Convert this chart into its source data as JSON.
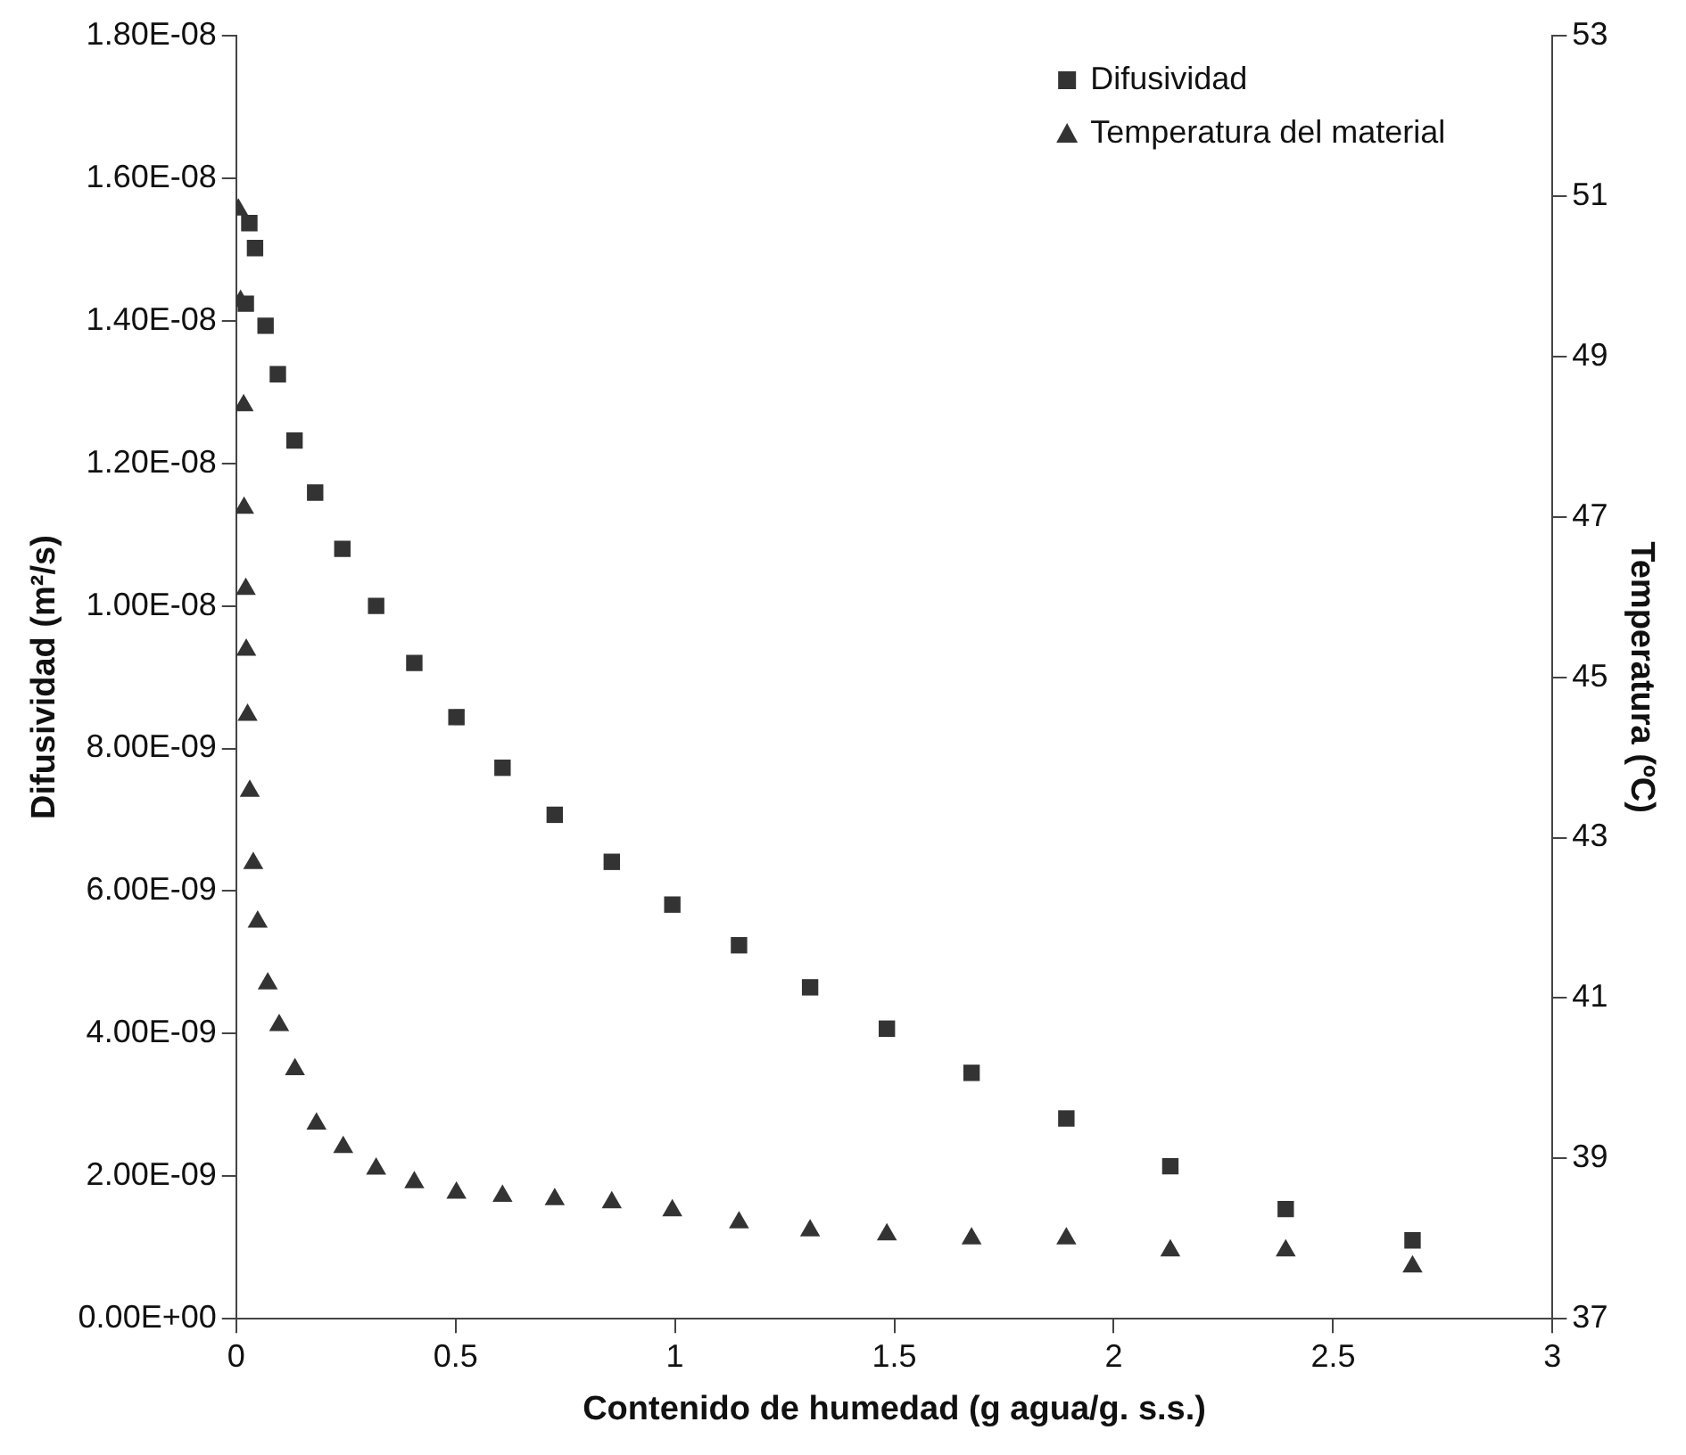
{
  "chart_data": {
    "type": "scatter",
    "xlabel": "Contenido de humedad (g agua/g. s.s.)",
    "ylabel": "Difusividad (m²/s)",
    "y2label": "Temperatura (ºC)",
    "xlim": [
      0,
      3
    ],
    "xticks": [
      0,
      0.5,
      1,
      1.5,
      2,
      2.5,
      3
    ],
    "ylim": [
      0,
      1.8e-08
    ],
    "yticks": [
      {
        "value": 0,
        "label": "0.00E+00"
      },
      {
        "value": 2e-09,
        "label": "2.00E-09"
      },
      {
        "value": 4e-09,
        "label": "4.00E-09"
      },
      {
        "value": 6e-09,
        "label": "6.00E-09"
      },
      {
        "value": 8e-09,
        "label": "8.00E-09"
      },
      {
        "value": 1e-08,
        "label": "1.00E-08"
      },
      {
        "value": 1.2e-08,
        "label": "1.20E-08"
      },
      {
        "value": 1.4e-08,
        "label": "1.40E-08"
      },
      {
        "value": 1.6e-08,
        "label": "1.60E-08"
      },
      {
        "value": 1.8e-08,
        "label": "1.80E-08"
      }
    ],
    "y2lim": [
      37,
      53
    ],
    "y2ticks": [
      37,
      39,
      41,
      43,
      45,
      47,
      49,
      51,
      53
    ],
    "grid": false,
    "legend": "top right",
    "series": [
      {
        "name": "Difusividad",
        "color": "#333333",
        "marker": "square",
        "x": [
          0.03,
          0.043,
          0.022,
          0.067,
          0.095,
          0.133,
          0.18,
          0.242,
          0.319,
          0.406,
          0.502,
          0.607,
          0.726,
          0.856,
          0.994,
          1.146,
          1.308,
          1.483,
          1.676,
          1.892,
          2.129,
          2.392,
          2.681
        ],
        "values": [
          1.537e-08,
          1.502e-08,
          1.424e-08,
          1.393e-08,
          1.325e-08,
          1.232e-08,
          1.159e-08,
          1.08e-08,
          1e-08,
          9.2e-09,
          8.44e-09,
          7.73e-09,
          7.07e-09,
          6.41e-09,
          5.81e-09,
          5.24e-09,
          4.65e-09,
          4.07e-09,
          3.45e-09,
          2.81e-09,
          2.14e-09,
          1.54e-09,
          1.1e-09
        ]
      },
      {
        "name": "Temperatura del material",
        "color": "#333333",
        "marker": "triangle",
        "axis": "y2",
        "x": [
          0.005,
          0.01,
          0.017,
          0.018,
          0.022,
          0.023,
          0.026,
          0.031,
          0.039,
          0.049,
          0.072,
          0.098,
          0.134,
          0.183,
          0.244,
          0.319,
          0.406,
          0.502,
          0.607,
          0.726,
          0.856,
          0.994,
          1.146,
          1.308,
          1.483,
          1.676,
          1.892,
          2.129,
          2.392,
          2.681
        ],
        "values": [
          50.83,
          49.69,
          48.39,
          47.11,
          46.1,
          45.34,
          44.53,
          43.58,
          42.68,
          41.95,
          41.18,
          40.66,
          40.11,
          39.43,
          39.14,
          38.87,
          38.7,
          38.57,
          38.53,
          38.49,
          38.45,
          38.35,
          38.2,
          38.1,
          38.05,
          38.0,
          38.0,
          37.85,
          37.85,
          37.65
        ]
      }
    ]
  }
}
